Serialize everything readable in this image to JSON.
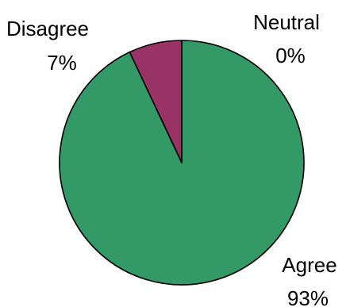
{
  "chart_data": {
    "type": "pie",
    "title": "",
    "slices": [
      {
        "label": "Agree",
        "value": 93,
        "value_label": "93%",
        "color": "#339966"
      },
      {
        "label": "Neutral",
        "value": 0,
        "value_label": "0%",
        "color": "#993366"
      },
      {
        "label": "Disagree",
        "value": 7,
        "value_label": "7%",
        "color": "#993366"
      }
    ],
    "start": "12 o'clock",
    "direction": "clockwise",
    "legend": "none",
    "data_labels": "outside"
  }
}
